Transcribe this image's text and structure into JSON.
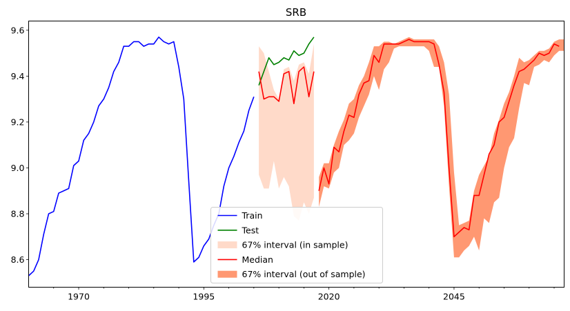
{
  "chart_data": {
    "type": "line",
    "title": "SRB",
    "xlabel": "",
    "ylabel": "",
    "xlim": [
      1960,
      2067
    ],
    "ylim": [
      8.48,
      9.64
    ],
    "x_ticks": [
      1970,
      1995,
      2020,
      2045
    ],
    "x_tick_labels": [
      "1970",
      "1995",
      "2020",
      "2045"
    ],
    "y_ticks": [
      8.6,
      8.8,
      9.0,
      9.2,
      9.4,
      9.6
    ],
    "y_tick_labels": [
      "8.6",
      "8.8",
      "9.0",
      "9.2",
      "9.4",
      "9.6"
    ],
    "grid": false,
    "legend_position": "lower-center",
    "series": [
      {
        "name": "Train",
        "kind": "line",
        "color": "#0000ff",
        "points": [
          [
            1960,
            8.53
          ],
          [
            1961,
            8.55
          ],
          [
            1962,
            8.6
          ],
          [
            1963,
            8.71
          ],
          [
            1964,
            8.8
          ],
          [
            1965,
            8.81
          ],
          [
            1966,
            8.89
          ],
          [
            1967,
            8.9
          ],
          [
            1968,
            8.91
          ],
          [
            1969,
            9.01
          ],
          [
            1970,
            9.03
          ],
          [
            1971,
            9.12
          ],
          [
            1972,
            9.15
          ],
          [
            1973,
            9.2
          ],
          [
            1974,
            9.27
          ],
          [
            1975,
            9.3
          ],
          [
            1976,
            9.35
          ],
          [
            1977,
            9.42
          ],
          [
            1978,
            9.46
          ],
          [
            1979,
            9.53
          ],
          [
            1980,
            9.53
          ],
          [
            1981,
            9.55
          ],
          [
            1982,
            9.55
          ],
          [
            1983,
            9.53
          ],
          [
            1984,
            9.54
          ],
          [
            1985,
            9.54
          ],
          [
            1986,
            9.57
          ],
          [
            1987,
            9.55
          ],
          [
            1988,
            9.54
          ],
          [
            1989,
            9.55
          ],
          [
            1990,
            9.44
          ],
          [
            1991,
            9.3
          ],
          [
            1992,
            8.94
          ],
          [
            1993,
            8.59
          ],
          [
            1994,
            8.61
          ],
          [
            1995,
            8.66
          ],
          [
            1996,
            8.69
          ],
          [
            1997,
            8.75
          ],
          [
            1998,
            8.8
          ],
          [
            1999,
            8.92
          ],
          [
            2000,
            9.0
          ],
          [
            2001,
            9.05
          ],
          [
            2002,
            9.11
          ],
          [
            2003,
            9.16
          ],
          [
            2004,
            9.25
          ],
          [
            2005,
            9.31
          ]
        ]
      },
      {
        "name": "Test",
        "kind": "line",
        "color": "#008000",
        "points": [
          [
            2006,
            9.36
          ],
          [
            2007,
            9.42
          ],
          [
            2008,
            9.48
          ],
          [
            2009,
            9.45
          ],
          [
            2010,
            9.46
          ],
          [
            2011,
            9.48
          ],
          [
            2012,
            9.47
          ],
          [
            2013,
            9.51
          ],
          [
            2014,
            9.49
          ],
          [
            2015,
            9.5
          ],
          [
            2016,
            9.54
          ],
          [
            2017,
            9.57
          ]
        ]
      },
      {
        "name": "67% interval (in sample)",
        "kind": "band",
        "color": "#ffdac9",
        "x": [
          2006,
          2007,
          2008,
          2009,
          2010,
          2011,
          2012,
          2013,
          2014,
          2015,
          2016,
          2017
        ],
        "upper": [
          9.53,
          9.5,
          9.42,
          9.34,
          9.3,
          9.43,
          9.44,
          9.38,
          9.45,
          9.46,
          9.41,
          9.54
        ],
        "lower": [
          8.97,
          8.91,
          8.91,
          9.03,
          8.91,
          8.96,
          8.92,
          8.79,
          8.77,
          8.85,
          8.8,
          8.87
        ]
      },
      {
        "name": "Median",
        "kind": "line",
        "color": "#ff0000",
        "segments": [
          [
            [
              2006,
              9.42
            ],
            [
              2007,
              9.3
            ],
            [
              2008,
              9.31
            ],
            [
              2009,
              9.31
            ],
            [
              2010,
              9.29
            ],
            [
              2011,
              9.41
            ],
            [
              2012,
              9.42
            ],
            [
              2013,
              9.28
            ],
            [
              2014,
              9.42
            ],
            [
              2015,
              9.44
            ],
            [
              2016,
              9.31
            ],
            [
              2017,
              9.42
            ]
          ],
          [
            [
              2018,
              8.9
            ],
            [
              2019,
              9.0
            ],
            [
              2020,
              8.93
            ],
            [
              2021,
              9.09
            ],
            [
              2022,
              9.07
            ],
            [
              2023,
              9.16
            ],
            [
              2024,
              9.23
            ],
            [
              2025,
              9.22
            ],
            [
              2026,
              9.32
            ],
            [
              2027,
              9.37
            ],
            [
              2028,
              9.38
            ],
            [
              2029,
              9.49
            ],
            [
              2030,
              9.46
            ],
            [
              2031,
              9.54
            ],
            [
              2032,
              9.54
            ],
            [
              2033,
              9.54
            ],
            [
              2034,
              9.54
            ],
            [
              2035,
              9.55
            ],
            [
              2036,
              9.56
            ],
            [
              2037,
              9.55
            ],
            [
              2038,
              9.55
            ],
            [
              2039,
              9.55
            ],
            [
              2040,
              9.55
            ],
            [
              2041,
              9.54
            ],
            [
              2042,
              9.45
            ],
            [
              2043,
              9.33
            ],
            [
              2044,
              9.0
            ],
            [
              2045,
              8.7
            ],
            [
              2046,
              8.72
            ],
            [
              2047,
              8.74
            ],
            [
              2048,
              8.73
            ],
            [
              2049,
              8.88
            ],
            [
              2050,
              8.88
            ],
            [
              2051,
              8.97
            ],
            [
              2052,
              9.06
            ],
            [
              2053,
              9.1
            ],
            [
              2054,
              9.2
            ],
            [
              2055,
              9.22
            ],
            [
              2056,
              9.29
            ],
            [
              2057,
              9.36
            ],
            [
              2058,
              9.42
            ],
            [
              2059,
              9.43
            ],
            [
              2060,
              9.45
            ],
            [
              2061,
              9.47
            ],
            [
              2062,
              9.5
            ],
            [
              2063,
              9.49
            ],
            [
              2064,
              9.5
            ],
            [
              2065,
              9.54
            ],
            [
              2066,
              9.53
            ]
          ]
        ]
      },
      {
        "name": "67% interval (out of sample)",
        "kind": "band",
        "color": "#ff9872",
        "x": [
          2018,
          2019,
          2020,
          2021,
          2022,
          2023,
          2024,
          2025,
          2026,
          2027,
          2028,
          2029,
          2030,
          2031,
          2032,
          2033,
          2034,
          2035,
          2036,
          2037,
          2038,
          2039,
          2040,
          2041,
          2042,
          2043,
          2044,
          2045,
          2046,
          2047,
          2048,
          2049,
          2050,
          2051,
          2052,
          2053,
          2054,
          2055,
          2056,
          2057,
          2058,
          2059,
          2060,
          2061,
          2062,
          2063,
          2064,
          2065,
          2066,
          2067
        ],
        "upper": [
          8.96,
          9.02,
          9.02,
          9.1,
          9.16,
          9.21,
          9.28,
          9.3,
          9.36,
          9.4,
          9.46,
          9.53,
          9.53,
          9.55,
          9.55,
          9.54,
          9.55,
          9.56,
          9.57,
          9.56,
          9.56,
          9.56,
          9.56,
          9.56,
          9.53,
          9.46,
          9.32,
          8.98,
          8.75,
          8.76,
          8.77,
          8.9,
          8.97,
          9.01,
          9.05,
          9.15,
          9.21,
          9.28,
          9.33,
          9.4,
          9.48,
          9.46,
          9.47,
          9.49,
          9.51,
          9.51,
          9.52,
          9.55,
          9.56,
          9.56
        ],
        "lower": [
          8.83,
          8.92,
          8.91,
          8.98,
          9.0,
          9.1,
          9.12,
          9.15,
          9.22,
          9.27,
          9.32,
          9.4,
          9.34,
          9.43,
          9.46,
          9.52,
          9.53,
          9.53,
          9.53,
          9.53,
          9.53,
          9.53,
          9.51,
          9.44,
          9.44,
          9.27,
          8.92,
          8.61,
          8.61,
          8.64,
          8.66,
          8.7,
          8.64,
          8.78,
          8.76,
          8.85,
          8.87,
          9.0,
          9.09,
          9.13,
          9.26,
          9.37,
          9.36,
          9.44,
          9.45,
          9.47,
          9.46,
          9.49,
          9.51,
          9.51
        ]
      }
    ],
    "legend": [
      {
        "label": "Train",
        "swatch": "line",
        "color": "#0000ff"
      },
      {
        "label": "Test",
        "swatch": "line",
        "color": "#008000"
      },
      {
        "label": "67% interval (in sample)",
        "swatch": "patch",
        "color": "#ffdac9"
      },
      {
        "label": "Median",
        "swatch": "line",
        "color": "#ff0000"
      },
      {
        "label": "67% interval (out of sample)",
        "swatch": "patch",
        "color": "#ff9872"
      }
    ]
  }
}
